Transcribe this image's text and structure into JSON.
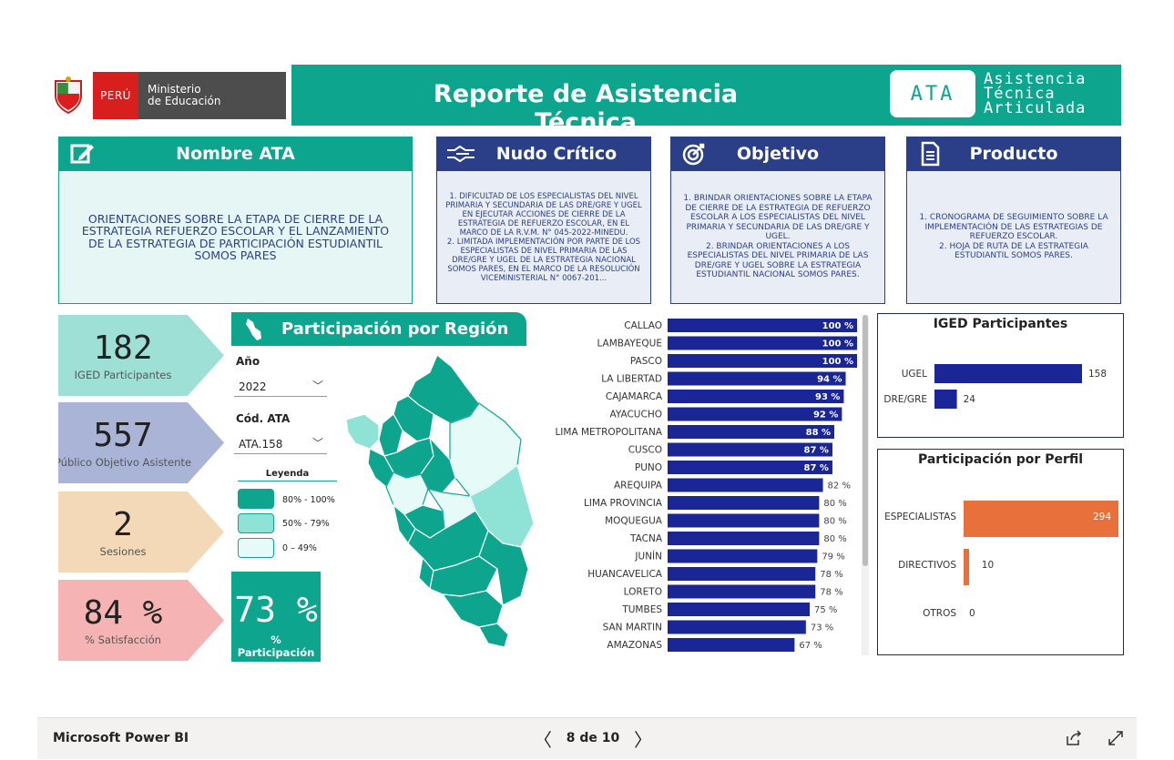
{
  "header": {
    "logo_country": "PERÚ",
    "logo_ministry_line1": "Ministerio",
    "logo_ministry_line2": "de Educación",
    "title": "Reporte de Asistencia Técnica",
    "badge": "ATA",
    "badge_full_line1": "Asistencia",
    "badge_full_line2": "Técnica",
    "badge_full_line3": "Articulada"
  },
  "cards": {
    "nombre": {
      "title": "Nombre ATA",
      "text": "ORIENTACIONES SOBRE LA ETAPA DE CIERRE DE LA ESTRATEGIA REFUERZO ESCOLAR Y EL LANZAMIENTO DE LA ESTRATEGIA DE PARTICIPACIÓN ESTUDIANTIL SOMOS PARES"
    },
    "nudo": {
      "title": "Nudo Crítico",
      "text": "1.        DIFICULTAD DE LOS ESPECIALISTAS DEL NIVEL PRIMARIA Y SECUNDARIA DE LAS DRE/GRE Y UGEL EN EJECUTAR ACCIONES DE CIERRE DE LA ESTRATEGIA DE REFUERZO ESCOLAR, EN EL MARCO DE LA R.V.M. N° 045-2022-MINEDU.\n2. LIMITADA IMPLEMENTACIÓN POR PARTE DE LOS ESPECIALISTAS DE NIVEL PRIMARIA DE LAS DRE/GRE Y UGEL DE LA ESTRATEGIA NACIONAL SOMOS PARES, EN EL MARCO DE LA RESOLUCIÓN VICEMINISTERIAL N° 0067-201..."
    },
    "objetivo": {
      "title": "Objetivo",
      "text": "1. BRINDAR ORIENTACIONES SOBRE LA ETAPA DE CIERRE DE LA ESTRATEGIA DE REFUERZO ESCOLAR A LOS ESPECIALISTAS DEL NIVEL PRIMARIA Y SECUNDARIA DE LAS DRE/GRE Y UGEL.\n2. BRINDAR ORIENTACIONES A LOS ESPECIALISTAS DEL NIVEL PRIMARIA DE LAS DRE/GRE Y UGEL SOBRE LA ESTRATEGIA ESTUDIANTIL NACIONAL SOMOS PARES."
    },
    "producto": {
      "title": "Producto",
      "text": "1. CRONOGRAMA DE SEGUIMIENTO SOBRE LA IMPLEMENTACIÓN DE LAS ESTRATEGIAS DE REFUERZO ESCOLAR.\n2. HOJA DE RUTA DE LA ESTRATEGIA ESTUDIANTIL SOMOS PARES."
    }
  },
  "kpis": [
    {
      "value": "182",
      "label": "IGED Participantes",
      "color": "#9fe0d6"
    },
    {
      "value": "557",
      "label": "Público Objetivo Asistente",
      "color": "#a9b4d6"
    },
    {
      "value": "2",
      "label": "Sesiones",
      "color": "#f3d9b8"
    },
    {
      "value": "84 %",
      "label": "% Satisfacción",
      "color": "#f6b3b3"
    }
  ],
  "region_panel": {
    "title": "Participación por Región",
    "year_label": "Año",
    "year_value": "2022",
    "code_label": "Cód. ATA",
    "code_value": "ATA.158",
    "legend_title": "Leyenda",
    "legend": [
      {
        "range": "80% - 100%",
        "color": "#0ea58f"
      },
      {
        "range": "50% - 79%",
        "color": "#8ee3d6"
      },
      {
        "range": "0 – 49%",
        "color": "#e6fbf8"
      }
    ],
    "participation_value": "73 %",
    "participation_label": "% Participación"
  },
  "chart_data": [
    {
      "type": "bar",
      "orientation": "horizontal",
      "categories": [
        "CALLAO",
        "LAMBAYEQUE",
        "PASCO",
        "LA LIBERTAD",
        "CAJAMARCA",
        "AYACUCHO",
        "LIMA METROPOLITANA",
        "CUSCO",
        "PUNO",
        "AREQUIPA",
        "LIMA PROVINCIA",
        "MOQUEGUA",
        "TACNA",
        "JUNÍN",
        "HUANCAVELICA",
        "LORETO",
        "TUMBES",
        "SAN MARTIN",
        "AMAZONAS"
      ],
      "values": [
        100,
        100,
        100,
        94,
        93,
        92,
        88,
        87,
        87,
        82,
        80,
        80,
        80,
        79,
        78,
        78,
        75,
        73,
        67
      ],
      "value_labels": [
        "100 %",
        "100 %",
        "100 %",
        "94 %",
        "93 %",
        "92 %",
        "88 %",
        "87 %",
        "87 %",
        "82 %",
        "80 %",
        "80 %",
        "80 %",
        "79 %",
        "78 %",
        "78 %",
        "75 %",
        "73 %",
        "67 %"
      ],
      "xlim": [
        0,
        100
      ],
      "color": "#1a2596"
    },
    {
      "type": "bar",
      "orientation": "horizontal",
      "title": "IGED Participantes",
      "categories": [
        "UGEL",
        "DRE/GRE"
      ],
      "values": [
        158,
        24
      ],
      "color": "#1a2596"
    },
    {
      "type": "bar",
      "orientation": "horizontal",
      "title": "Participación por Perfil",
      "categories": [
        "ESPECIALISTAS",
        "DIRECTIVOS",
        "OTROS"
      ],
      "values": [
        294,
        10,
        0
      ],
      "color": "#e8703a"
    }
  ],
  "footer": {
    "brand": "Microsoft Power BI",
    "page_text": "8 de 10",
    "prev": "〈",
    "next": "〉"
  }
}
